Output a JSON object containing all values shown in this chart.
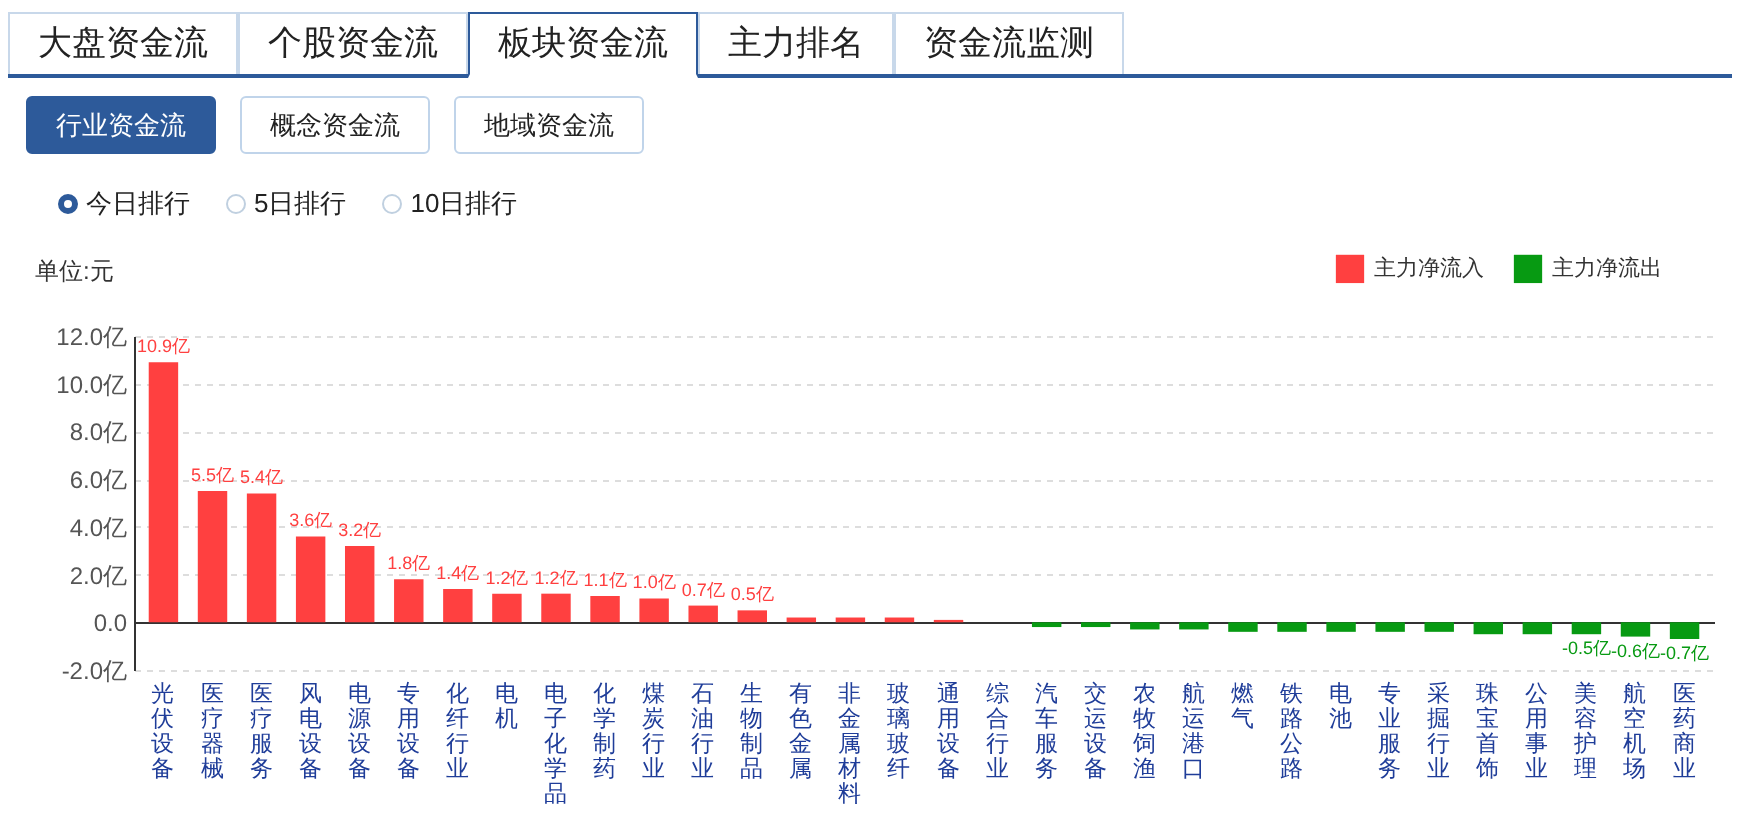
{
  "chart_data": {
    "type": "bar",
    "ylabel": "单位:元",
    "annotations": [
      "大盘资金流",
      "个股资金流",
      "板块资金流",
      "主力排名",
      "资金流监测",
      "行业资金流",
      "概念资金流",
      "地域资金流",
      "今日排行",
      "5日排行",
      "10日排行"
    ],
    "categories": [
      "光伏设备",
      "医疗器械",
      "医疗服务",
      "风电设备",
      "电源设备",
      "专用设备",
      "化纤行业",
      "电机",
      "电子化学品",
      "化学制药",
      "煤炭行业",
      "石油行业",
      "生物制品",
      "有色金属",
      "非金属材料",
      "玻璃玻纤",
      "通用设备",
      "综合行业",
      "汽车服务",
      "交运设备",
      "农牧饲渔",
      "航运港口",
      "燃气",
      "铁路公路",
      "电池",
      "专业服务",
      "采掘行业",
      "珠宝首饰",
      "公用事业",
      "美容护理",
      "航空机场",
      "医药商业"
    ],
    "series": [
      {
        "name": "主力净流入",
        "color": "#ff4040",
        "values": [
          10.9,
          5.5,
          5.4,
          3.6,
          3.2,
          1.8,
          1.4,
          1.2,
          1.2,
          1.1,
          1.0,
          0.7,
          0.5,
          0.2,
          0.2,
          0.2,
          0.1,
          null,
          null,
          null,
          null,
          null,
          null,
          null,
          null,
          null,
          null,
          null,
          null,
          null,
          null,
          null
        ]
      },
      {
        "name": "主力净流出",
        "color": "#079a12",
        "values": [
          null,
          null,
          null,
          null,
          null,
          null,
          null,
          null,
          null,
          null,
          null,
          null,
          null,
          null,
          null,
          null,
          null,
          0,
          -0.2,
          -0.2,
          -0.3,
          -0.3,
          -0.4,
          -0.4,
          -0.4,
          -0.4,
          -0.4,
          -0.5,
          -0.5,
          -0.5,
          -0.6,
          -0.7
        ],
        "value_labels": [
          null,
          null,
          null,
          null,
          null,
          null,
          null,
          null,
          null,
          null,
          null,
          null,
          null,
          null,
          null,
          null,
          null,
          null,
          null,
          null,
          null,
          null,
          null,
          null,
          null,
          null,
          null,
          null,
          null,
          "-0.5亿",
          "-0.6亿",
          "-0.7亿"
        ]
      }
    ],
    "value_labels": [
      "10.9亿",
      "5.5亿",
      "5.4亿",
      "3.6亿",
      "3.2亿",
      "1.8亿",
      "1.4亿",
      "1.2亿",
      "1.2亿",
      "1.1亿",
      "1.0亿",
      "0.7亿",
      "0.5亿",
      null,
      null,
      null,
      null,
      null,
      null,
      null,
      null,
      null,
      null,
      null,
      null,
      null,
      null,
      null,
      null,
      null,
      null,
      null
    ],
    "ylim": [
      -2,
      12
    ],
    "yticks": [
      {
        "value": -2,
        "label": "-2.0亿"
      },
      {
        "value": 0,
        "label": "0.0"
      },
      {
        "value": 2,
        "label": "2.0亿"
      },
      {
        "value": 4,
        "label": "4.0亿"
      },
      {
        "value": 6,
        "label": "6.0亿"
      },
      {
        "value": 8,
        "label": "8.0亿"
      },
      {
        "value": 10,
        "label": "10.0亿"
      },
      {
        "value": 12,
        "label": "12.0亿"
      }
    ],
    "grid": "y",
    "legend": "top right"
  }
}
